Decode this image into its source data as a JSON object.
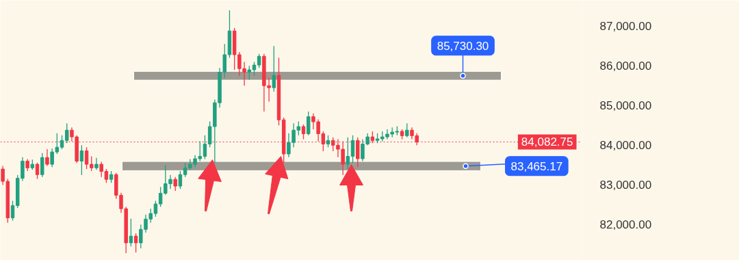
{
  "chart_data": {
    "type": "candlestick",
    "categories": [
      null,
      null,
      null,
      null,
      null,
      null,
      null,
      null,
      null,
      null,
      null,
      null,
      null,
      null,
      null,
      null,
      null,
      null,
      null,
      null,
      null,
      null,
      null,
      null,
      null,
      null,
      null,
      null,
      null,
      null,
      null,
      null,
      null,
      null,
      null,
      null,
      null,
      null,
      null,
      null,
      null,
      null,
      null,
      null,
      null,
      null,
      null,
      null,
      null,
      null,
      null,
      null,
      null,
      null,
      null,
      null,
      null,
      null,
      null,
      null,
      null,
      null,
      null,
      null,
      null,
      null,
      null,
      null,
      null,
      null,
      null,
      null,
      null,
      null,
      null,
      null,
      null,
      null,
      null,
      null,
      null,
      null,
      null,
      null,
      null,
      null,
      null,
      null,
      null,
      null,
      null,
      null,
      null,
      null,
      null,
      null,
      null,
      null,
      null,
      null,
      null,
      null,
      null,
      null,
      null,
      null,
      null,
      null,
      null,
      null,
      null,
      null,
      null,
      null,
      null,
      null,
      null,
      null
    ],
    "ohlc": [
      [
        83400,
        83480,
        83000,
        83090
      ],
      [
        83090,
        83150,
        82050,
        82170
      ],
      [
        82170,
        82600,
        82100,
        82480
      ],
      [
        82480,
        83250,
        82420,
        83170
      ],
      [
        83170,
        83700,
        83100,
        83600
      ],
      [
        83600,
        83650,
        83350,
        83430
      ],
      [
        83430,
        83640,
        83380,
        83520
      ],
      [
        83520,
        83560,
        83150,
        83260
      ],
      [
        83260,
        83800,
        83200,
        83690
      ],
      [
        83690,
        83900,
        83480,
        83520
      ],
      [
        83520,
        83920,
        83450,
        83830
      ],
      [
        83830,
        84300,
        83780,
        83950
      ],
      [
        83950,
        84250,
        83900,
        84120
      ],
      [
        84120,
        84550,
        84050,
        84380
      ],
      [
        84380,
        84450,
        84100,
        84210
      ],
      [
        84210,
        84250,
        83550,
        83600
      ],
      [
        83600,
        84000,
        83250,
        83860
      ],
      [
        83860,
        83950,
        83400,
        83520
      ],
      [
        83520,
        83720,
        83350,
        83430
      ],
      [
        83430,
        83680,
        83380,
        83520
      ],
      [
        83520,
        83580,
        83200,
        83340
      ],
      [
        83340,
        83400,
        83050,
        83140
      ],
      [
        83140,
        83350,
        83050,
        83260
      ],
      [
        83260,
        83300,
        82650,
        82740
      ],
      [
        82740,
        82800,
        82300,
        82400
      ],
      [
        82400,
        82450,
        81280,
        81540
      ],
      [
        81540,
        82150,
        81450,
        81710
      ],
      [
        81710,
        81780,
        81300,
        81540
      ],
      [
        81540,
        82000,
        81400,
        81880
      ],
      [
        81880,
        82250,
        81800,
        82140
      ],
      [
        82140,
        82400,
        82050,
        82280
      ],
      [
        82280,
        82600,
        82200,
        82520
      ],
      [
        82520,
        82950,
        82450,
        82790
      ],
      [
        82790,
        83500,
        82750,
        83030
      ],
      [
        83030,
        83250,
        82900,
        83140
      ],
      [
        83140,
        83200,
        82850,
        82970
      ],
      [
        82970,
        83350,
        82900,
        83260
      ],
      [
        83260,
        83550,
        83200,
        83430
      ],
      [
        83430,
        83650,
        83380,
        83520
      ],
      [
        83520,
        83750,
        83450,
        83660
      ],
      [
        83660,
        84100,
        83600,
        83720
      ],
      [
        83720,
        84250,
        83650,
        84030
      ],
      [
        84030,
        84600,
        83950,
        84470
      ],
      [
        84470,
        85150,
        83550,
        85070
      ],
      [
        85070,
        85950,
        84950,
        85840
      ],
      [
        85840,
        86550,
        85700,
        86280
      ],
      [
        86280,
        87400,
        86200,
        86880
      ],
      [
        86880,
        86950,
        85900,
        86280
      ],
      [
        86280,
        86350,
        85750,
        85930
      ],
      [
        85930,
        86100,
        85500,
        85840
      ],
      [
        85840,
        86000,
        85650,
        85900
      ],
      [
        85900,
        86100,
        85750,
        86020
      ],
      [
        86020,
        86300,
        85950,
        86240
      ],
      [
        86240,
        86300,
        84850,
        85500
      ],
      [
        85500,
        85700,
        85100,
        85450
      ],
      [
        85450,
        86500,
        85350,
        85760
      ],
      [
        85760,
        86200,
        84500,
        84640
      ],
      [
        84640,
        84700,
        83560,
        83780
      ],
      [
        83780,
        84300,
        83700,
        84070
      ],
      [
        84070,
        84550,
        83950,
        84380
      ],
      [
        84380,
        84600,
        84250,
        84470
      ],
      [
        84470,
        84520,
        84150,
        84290
      ],
      [
        84290,
        84850,
        84250,
        84720
      ],
      [
        84720,
        84800,
        84400,
        84590
      ],
      [
        84590,
        84650,
        84100,
        84290
      ],
      [
        84290,
        84350,
        83850,
        84030
      ],
      [
        84030,
        84250,
        83950,
        84120
      ],
      [
        84120,
        84200,
        83850,
        84000
      ],
      [
        84000,
        84150,
        83700,
        83900
      ],
      [
        83900,
        84100,
        83250,
        83520
      ],
      [
        83520,
        84200,
        83400,
        83720
      ],
      [
        83720,
        84250,
        83550,
        84120
      ],
      [
        84120,
        84200,
        83450,
        83660
      ],
      [
        83660,
        84150,
        83600,
        84030
      ],
      [
        84030,
        84300,
        84000,
        84210
      ],
      [
        84210,
        84350,
        84050,
        84120
      ],
      [
        84120,
        84300,
        84050,
        84160
      ],
      [
        84160,
        84350,
        84100,
        84210
      ],
      [
        84210,
        84400,
        84150,
        84280
      ],
      [
        84280,
        84450,
        84200,
        84330
      ],
      [
        84330,
        84480,
        84250,
        84350
      ],
      [
        84350,
        84400,
        84150,
        84240
      ],
      [
        84240,
        84550,
        84200,
        84380
      ],
      [
        84380,
        84450,
        84150,
        84240
      ],
      [
        84240,
        84300,
        84000,
        84080
      ],
      null,
      null,
      null,
      null,
      null,
      null,
      null,
      null,
      null,
      null,
      null,
      null,
      null,
      null,
      null,
      null,
      null,
      null,
      null,
      null,
      null,
      null,
      null,
      null,
      null,
      null,
      null,
      null,
      null,
      null,
      null,
      null,
      null
    ],
    "ylim": [
      81100,
      87650
    ],
    "yticks": [
      {
        "value": 82000,
        "label": "82,000.00"
      },
      {
        "value": 83000,
        "label": "83,000.00"
      },
      {
        "value": 84000,
        "label": "84,000.00"
      },
      {
        "value": 85000,
        "label": "85,000.00"
      },
      {
        "value": 86000,
        "label": "86,000.00"
      },
      {
        "value": 87000,
        "label": "87,000.00"
      }
    ],
    "ref_lines": [
      {
        "axis": "y",
        "value": 84082.75,
        "label": "84,082.75",
        "color": "#f23645",
        "line_style": "dotted"
      }
    ],
    "bands": [
      {
        "axis": "y",
        "from": 85640,
        "to": 85860,
        "label": "85,730.30",
        "color": "#8c8a83"
      },
      {
        "axis": "y",
        "from": 83360,
        "to": 83590,
        "label": "83,465.17",
        "color": "#8c8a83"
      }
    ],
    "tick_labels": "y",
    "grid": false
  }
}
